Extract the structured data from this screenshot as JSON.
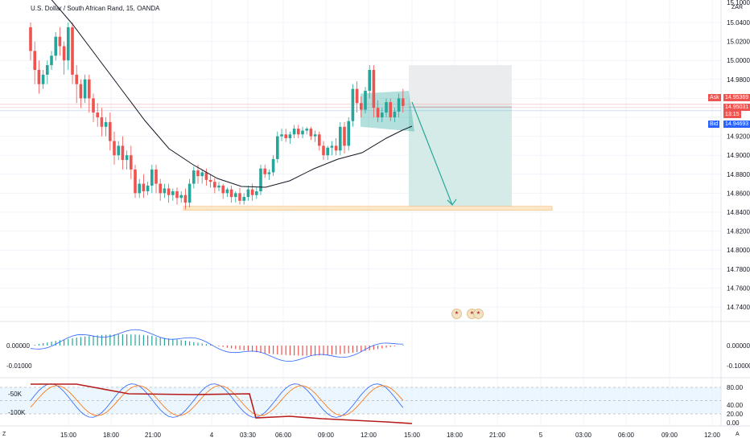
{
  "header": {
    "title": "U.S. Dollar / South African Rand, 15, OANDA"
  },
  "currency": "ZAR",
  "price_axis": {
    "labels": [
      "15.10000",
      "15.04000",
      "15.02000",
      "15.00000",
      "14.98000",
      "14.92000",
      "14.90000",
      "14.88000",
      "14.86000",
      "14.84000",
      "14.82000",
      "14.80000",
      "14.78000",
      "14.76000",
      "14.74000"
    ]
  },
  "tags": {
    "ask_label": "Ask",
    "ask_value": "14.95369",
    "last_value": "14.95031",
    "countdown": "13:15",
    "bid_label": "Bid",
    "bid_value": "14.94693"
  },
  "macd_axis": {
    "labels": [
      "0.00000",
      "-0.10000"
    ]
  },
  "macd_left": {
    "labels": [
      "0.00000",
      "-0.01000"
    ]
  },
  "stoch_axis": {
    "labels": [
      "80.00",
      "40.00",
      "20.00",
      "0.00"
    ]
  },
  "stoch_left": {
    "labels": [
      "-50K",
      "-100K"
    ]
  },
  "time_axis": {
    "labels": [
      "15:00",
      "18:00",
      "21:00",
      "4",
      "03:30",
      "06:00",
      "09:00",
      "12:00",
      "15:00",
      "18:00",
      "21:00",
      "5",
      "03:00",
      "06:00",
      "09:00",
      "12:00"
    ]
  },
  "corner": {
    "left": "Z",
    "right": "A"
  },
  "colors": {
    "up": "#26a69a",
    "down": "#ef5350",
    "target": "#26a69a",
    "stop": "#b2b5be",
    "macd": "#2962ff",
    "stoch_k": "#2962ff",
    "stoch_d": "#ff6d00",
    "volume_line": "#b71c1c"
  },
  "icons": [
    "flag-icon",
    "flag-icon"
  ],
  "chart_data": {
    "type": "candlestick",
    "x_axis": "15-minute bars",
    "y_range": [
      14.72,
      15.1
    ],
    "trade": {
      "entry": 14.951,
      "stop": 14.995,
      "target": 14.846,
      "direction": "short"
    },
    "support_level": 14.844,
    "series": [
      {
        "o": 15.035,
        "h": 15.04,
        "c": 15.01,
        "l": 15.0
      },
      {
        "o": 15.01,
        "h": 15.02,
        "c": 14.99,
        "l": 14.975
      },
      {
        "o": 14.99,
        "h": 15.0,
        "c": 14.975,
        "l": 14.965
      },
      {
        "o": 14.975,
        "h": 14.99,
        "c": 14.985,
        "l": 14.97
      },
      {
        "o": 14.985,
        "h": 15.0,
        "c": 14.995,
        "l": 14.975
      },
      {
        "o": 14.995,
        "h": 15.01,
        "c": 15.005,
        "l": 14.99
      },
      {
        "o": 15.005,
        "h": 15.03,
        "c": 15.025,
        "l": 15.0
      },
      {
        "o": 15.025,
        "h": 15.035,
        "c": 15.015,
        "l": 15.005
      },
      {
        "o": 15.015,
        "h": 15.02,
        "c": 15.0,
        "l": 14.985
      },
      {
        "o": 15.0,
        "h": 15.04,
        "c": 15.035,
        "l": 14.99
      },
      {
        "o": 15.035,
        "h": 15.04,
        "c": 14.985,
        "l": 14.975
      },
      {
        "o": 14.985,
        "h": 14.995,
        "c": 14.975,
        "l": 14.955
      },
      {
        "o": 14.975,
        "h": 14.98,
        "c": 14.96,
        "l": 14.95
      },
      {
        "o": 14.96,
        "h": 14.985,
        "c": 14.98,
        "l": 14.955
      },
      {
        "o": 14.98,
        "h": 14.985,
        "c": 14.96,
        "l": 14.945
      },
      {
        "o": 14.96,
        "h": 14.965,
        "c": 14.945,
        "l": 14.935
      },
      {
        "o": 14.945,
        "h": 14.955,
        "c": 14.94,
        "l": 14.93
      },
      {
        "o": 14.94,
        "h": 14.95,
        "c": 14.93,
        "l": 14.92
      },
      {
        "o": 14.93,
        "h": 14.94,
        "c": 14.935,
        "l": 14.92
      },
      {
        "o": 14.935,
        "h": 14.945,
        "c": 14.915,
        "l": 14.905
      },
      {
        "o": 14.915,
        "h": 14.925,
        "c": 14.9,
        "l": 14.89
      },
      {
        "o": 14.9,
        "h": 14.915,
        "c": 14.91,
        "l": 14.895
      },
      {
        "o": 14.91,
        "h": 14.92,
        "c": 14.895,
        "l": 14.885
      },
      {
        "o": 14.895,
        "h": 14.905,
        "c": 14.9,
        "l": 14.885
      },
      {
        "o": 14.9,
        "h": 14.91,
        "c": 14.885,
        "l": 14.875
      },
      {
        "o": 14.885,
        "h": 14.89,
        "c": 14.86,
        "l": 14.855
      },
      {
        "o": 14.86,
        "h": 14.875,
        "c": 14.87,
        "l": 14.855
      },
      {
        "o": 14.87,
        "h": 14.88,
        "c": 14.862,
        "l": 14.855
      },
      {
        "o": 14.862,
        "h": 14.872,
        "c": 14.868,
        "l": 14.858
      },
      {
        "o": 14.868,
        "h": 14.89,
        "c": 14.885,
        "l": 14.86
      },
      {
        "o": 14.885,
        "h": 14.89,
        "c": 14.87,
        "l": 14.86
      },
      {
        "o": 14.87,
        "h": 14.875,
        "c": 14.86,
        "l": 14.852
      },
      {
        "o": 14.86,
        "h": 14.87,
        "c": 14.865,
        "l": 14.855
      },
      {
        "o": 14.865,
        "h": 14.87,
        "c": 14.858,
        "l": 14.85
      },
      {
        "o": 14.858,
        "h": 14.865,
        "c": 14.862,
        "l": 14.852
      },
      {
        "o": 14.862,
        "h": 14.866,
        "c": 14.855,
        "l": 14.848
      },
      {
        "o": 14.855,
        "h": 14.862,
        "c": 14.858,
        "l": 14.85
      },
      {
        "o": 14.858,
        "h": 14.865,
        "c": 14.85,
        "l": 14.843
      },
      {
        "o": 14.85,
        "h": 14.875,
        "c": 14.87,
        "l": 14.845
      },
      {
        "o": 14.87,
        "h": 14.888,
        "c": 14.884,
        "l": 14.865
      },
      {
        "o": 14.884,
        "h": 14.89,
        "c": 14.878,
        "l": 14.87
      },
      {
        "o": 14.878,
        "h": 14.885,
        "c": 14.882,
        "l": 14.87
      },
      {
        "o": 14.882,
        "h": 14.886,
        "c": 14.874,
        "l": 14.868
      },
      {
        "o": 14.874,
        "h": 14.88,
        "c": 14.872,
        "l": 14.866
      },
      {
        "o": 14.872,
        "h": 14.876,
        "c": 14.866,
        "l": 14.86
      },
      {
        "o": 14.866,
        "h": 14.872,
        "c": 14.868,
        "l": 14.862
      },
      {
        "o": 14.868,
        "h": 14.87,
        "c": 14.86,
        "l": 14.854
      },
      {
        "o": 14.86,
        "h": 14.866,
        "c": 14.864,
        "l": 14.856
      },
      {
        "o": 14.864,
        "h": 14.868,
        "c": 14.856,
        "l": 14.85
      },
      {
        "o": 14.856,
        "h": 14.862,
        "c": 14.86,
        "l": 14.85
      },
      {
        "o": 14.86,
        "h": 14.866,
        "c": 14.852,
        "l": 14.848
      },
      {
        "o": 14.852,
        "h": 14.86,
        "c": 14.856,
        "l": 14.848
      },
      {
        "o": 14.856,
        "h": 14.868,
        "c": 14.864,
        "l": 14.852
      },
      {
        "o": 14.864,
        "h": 14.87,
        "c": 14.858,
        "l": 14.852
      },
      {
        "o": 14.858,
        "h": 14.866,
        "c": 14.862,
        "l": 14.854
      },
      {
        "o": 14.862,
        "h": 14.89,
        "c": 14.886,
        "l": 14.858
      },
      {
        "o": 14.886,
        "h": 14.89,
        "c": 14.88,
        "l": 14.876
      },
      {
        "o": 14.88,
        "h": 14.885,
        "c": 14.882,
        "l": 14.874
      },
      {
        "o": 14.882,
        "h": 14.9,
        "c": 14.896,
        "l": 14.878
      },
      {
        "o": 14.896,
        "h": 14.925,
        "c": 14.92,
        "l": 14.892
      },
      {
        "o": 14.92,
        "h": 14.928,
        "c": 14.922,
        "l": 14.915
      },
      {
        "o": 14.922,
        "h": 14.928,
        "c": 14.918,
        "l": 14.914
      },
      {
        "o": 14.918,
        "h": 14.925,
        "c": 14.922,
        "l": 14.912
      },
      {
        "o": 14.922,
        "h": 14.932,
        "c": 14.928,
        "l": 14.918
      },
      {
        "o": 14.928,
        "h": 14.932,
        "c": 14.922,
        "l": 14.918
      },
      {
        "o": 14.922,
        "h": 14.93,
        "c": 14.926,
        "l": 14.918
      },
      {
        "o": 14.926,
        "h": 14.93,
        "c": 14.928,
        "l": 14.922
      },
      {
        "o": 14.928,
        "h": 14.93,
        "c": 14.92,
        "l": 14.916
      },
      {
        "o": 14.92,
        "h": 14.926,
        "c": 14.922,
        "l": 14.914
      },
      {
        "o": 14.922,
        "h": 14.925,
        "c": 14.91,
        "l": 14.905
      },
      {
        "o": 14.91,
        "h": 14.915,
        "c": 14.9,
        "l": 14.895
      },
      {
        "o": 14.9,
        "h": 14.91,
        "c": 14.908,
        "l": 14.895
      },
      {
        "o": 14.908,
        "h": 14.915,
        "c": 14.91,
        "l": 14.9
      },
      {
        "o": 14.91,
        "h": 14.918,
        "c": 14.905,
        "l": 14.9
      },
      {
        "o": 14.905,
        "h": 14.935,
        "c": 14.93,
        "l": 14.9
      },
      {
        "o": 14.93,
        "h": 14.935,
        "c": 14.91,
        "l": 14.902
      },
      {
        "o": 14.91,
        "h": 14.94,
        "c": 14.936,
        "l": 14.905
      },
      {
        "o": 14.936,
        "h": 14.975,
        "c": 14.97,
        "l": 14.93
      },
      {
        "o": 14.97,
        "h": 14.978,
        "c": 14.955,
        "l": 14.945
      },
      {
        "o": 14.955,
        "h": 14.962,
        "c": 14.948,
        "l": 14.94
      },
      {
        "o": 14.948,
        "h": 14.972,
        "c": 14.968,
        "l": 14.944
      },
      {
        "o": 14.968,
        "h": 14.995,
        "c": 14.99,
        "l": 14.96
      },
      {
        "o": 14.99,
        "h": 14.995,
        "c": 14.95,
        "l": 14.94
      },
      {
        "o": 14.95,
        "h": 14.958,
        "c": 14.94,
        "l": 14.935
      },
      {
        "o": 14.94,
        "h": 14.95,
        "c": 14.945,
        "l": 14.935
      },
      {
        "o": 14.945,
        "h": 14.96,
        "c": 14.956,
        "l": 14.94
      },
      {
        "o": 14.956,
        "h": 14.96,
        "c": 14.94,
        "l": 14.936
      },
      {
        "o": 14.94,
        "h": 14.95,
        "c": 14.946,
        "l": 14.935
      },
      {
        "o": 14.946,
        "h": 14.965,
        "c": 14.96,
        "l": 14.94
      },
      {
        "o": 14.96,
        "h": 14.97,
        "c": 14.952,
        "l": 14.945
      }
    ]
  }
}
